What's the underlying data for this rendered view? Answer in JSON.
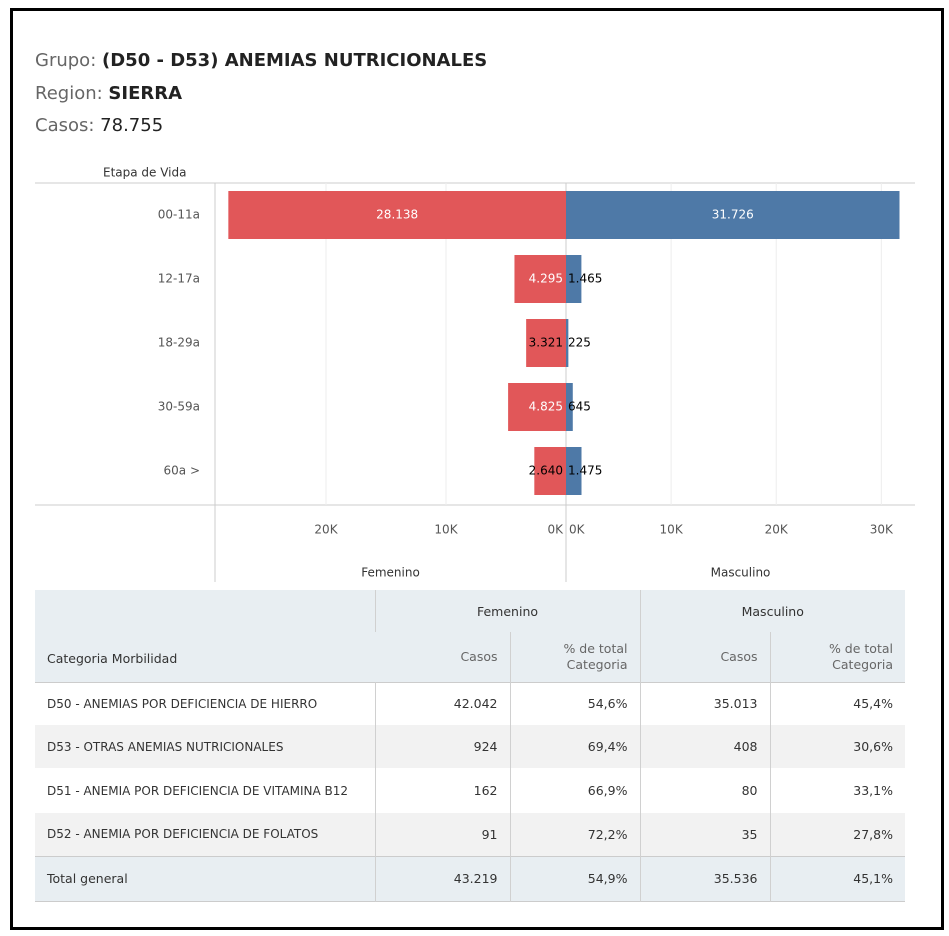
{
  "header": {
    "grupo_label": "Grupo:",
    "grupo": "(D50 - D53) ANEMIAS NUTRICIONALES",
    "region_label": "Region:",
    "region": "SIERRA",
    "casos_label": "Casos:",
    "casos": "78.755"
  },
  "chart_data": {
    "type": "butterfly",
    "y_axis_label": "Etapa de Vida",
    "categories": [
      "00-11a",
      "12-17a",
      "18-29a",
      "30-59a",
      "60a >"
    ],
    "series": [
      {
        "name": "Femenino",
        "color": "#e15759",
        "values": [
          28138,
          4295,
          3321,
          4825,
          2640
        ],
        "value_labels": [
          "28.138",
          "4.295",
          "3.321",
          "4.825",
          "2.640"
        ],
        "xlim": [
          0,
          29250
        ],
        "xticks": [
          {
            "value": 0,
            "label": "0K"
          },
          {
            "value": 10000,
            "label": "10K"
          },
          {
            "value": 20000,
            "label": "20K"
          }
        ]
      },
      {
        "name": "Masculino",
        "color": "#4e79a7",
        "values": [
          31726,
          1465,
          225,
          645,
          1475
        ],
        "value_labels": [
          "31.726",
          "1.465",
          "225",
          "645",
          "1.475"
        ],
        "xlim": [
          0,
          33200
        ],
        "xticks": [
          {
            "value": 0,
            "label": "0K"
          },
          {
            "value": 10000,
            "label": "10K"
          },
          {
            "value": 20000,
            "label": "20K"
          },
          {
            "value": 30000,
            "label": "30K"
          }
        ]
      }
    ],
    "grid": true
  },
  "table": {
    "group_headers": [
      "Femenino",
      "Masculino"
    ],
    "columns": [
      "Categoria Morbilidad",
      "Casos",
      "% de total Categoria",
      "Casos",
      "% de total Categoria"
    ],
    "rows": [
      [
        "D50 - ANEMIAS POR DEFICIENCIA DE HIERRO",
        "42.042",
        "54,6%",
        "35.013",
        "45,4%"
      ],
      [
        "D53 - OTRAS ANEMIAS NUTRICIONALES",
        "924",
        "69,4%",
        "408",
        "30,6%"
      ],
      [
        "D51 - ANEMIA POR DEFICIENCIA DE VITAMINA B12",
        "162",
        "66,9%",
        "80",
        "33,1%"
      ],
      [
        "D52 - ANEMIA POR DEFICIENCIA DE FOLATOS",
        "91",
        "72,2%",
        "35",
        "27,8%"
      ]
    ],
    "total": [
      "Total general",
      "43.219",
      "54,9%",
      "35.536",
      "45,1%"
    ]
  }
}
